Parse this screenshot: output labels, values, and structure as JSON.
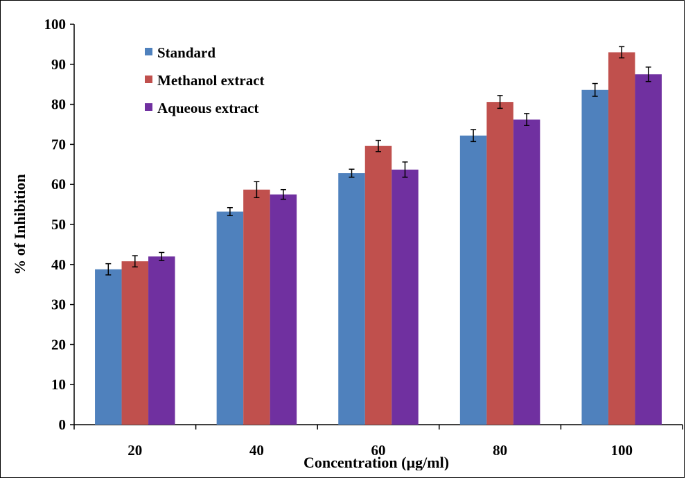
{
  "chart_data": {
    "type": "bar",
    "title": "",
    "xlabel": "Concentration (µg/ml)",
    "ylabel": "% of Inhibition",
    "categories": [
      "20",
      "40",
      "60",
      "80",
      "100"
    ],
    "ylim": [
      0,
      100
    ],
    "yticks": [
      0,
      10,
      20,
      30,
      40,
      50,
      60,
      70,
      80,
      90,
      100
    ],
    "grid": false,
    "legend": "top-left",
    "error_bars": true,
    "series": [
      {
        "name": "Standard",
        "color": "#4F81BD",
        "values": [
          38.8,
          53.2,
          62.8,
          72.2,
          83.6
        ],
        "errors": [
          1.4,
          1.0,
          1.0,
          1.5,
          1.6
        ]
      },
      {
        "name": "Methanol extract",
        "color": "#C0504D",
        "values": [
          40.8,
          58.7,
          69.6,
          80.6,
          93.0
        ],
        "errors": [
          1.4,
          2.0,
          1.4,
          1.6,
          1.4
        ]
      },
      {
        "name": "Aqueous extract",
        "color": "#7030A0",
        "values": [
          42.0,
          57.5,
          63.7,
          76.2,
          87.5
        ],
        "errors": [
          1.0,
          1.2,
          1.9,
          1.5,
          1.8
        ]
      }
    ]
  }
}
